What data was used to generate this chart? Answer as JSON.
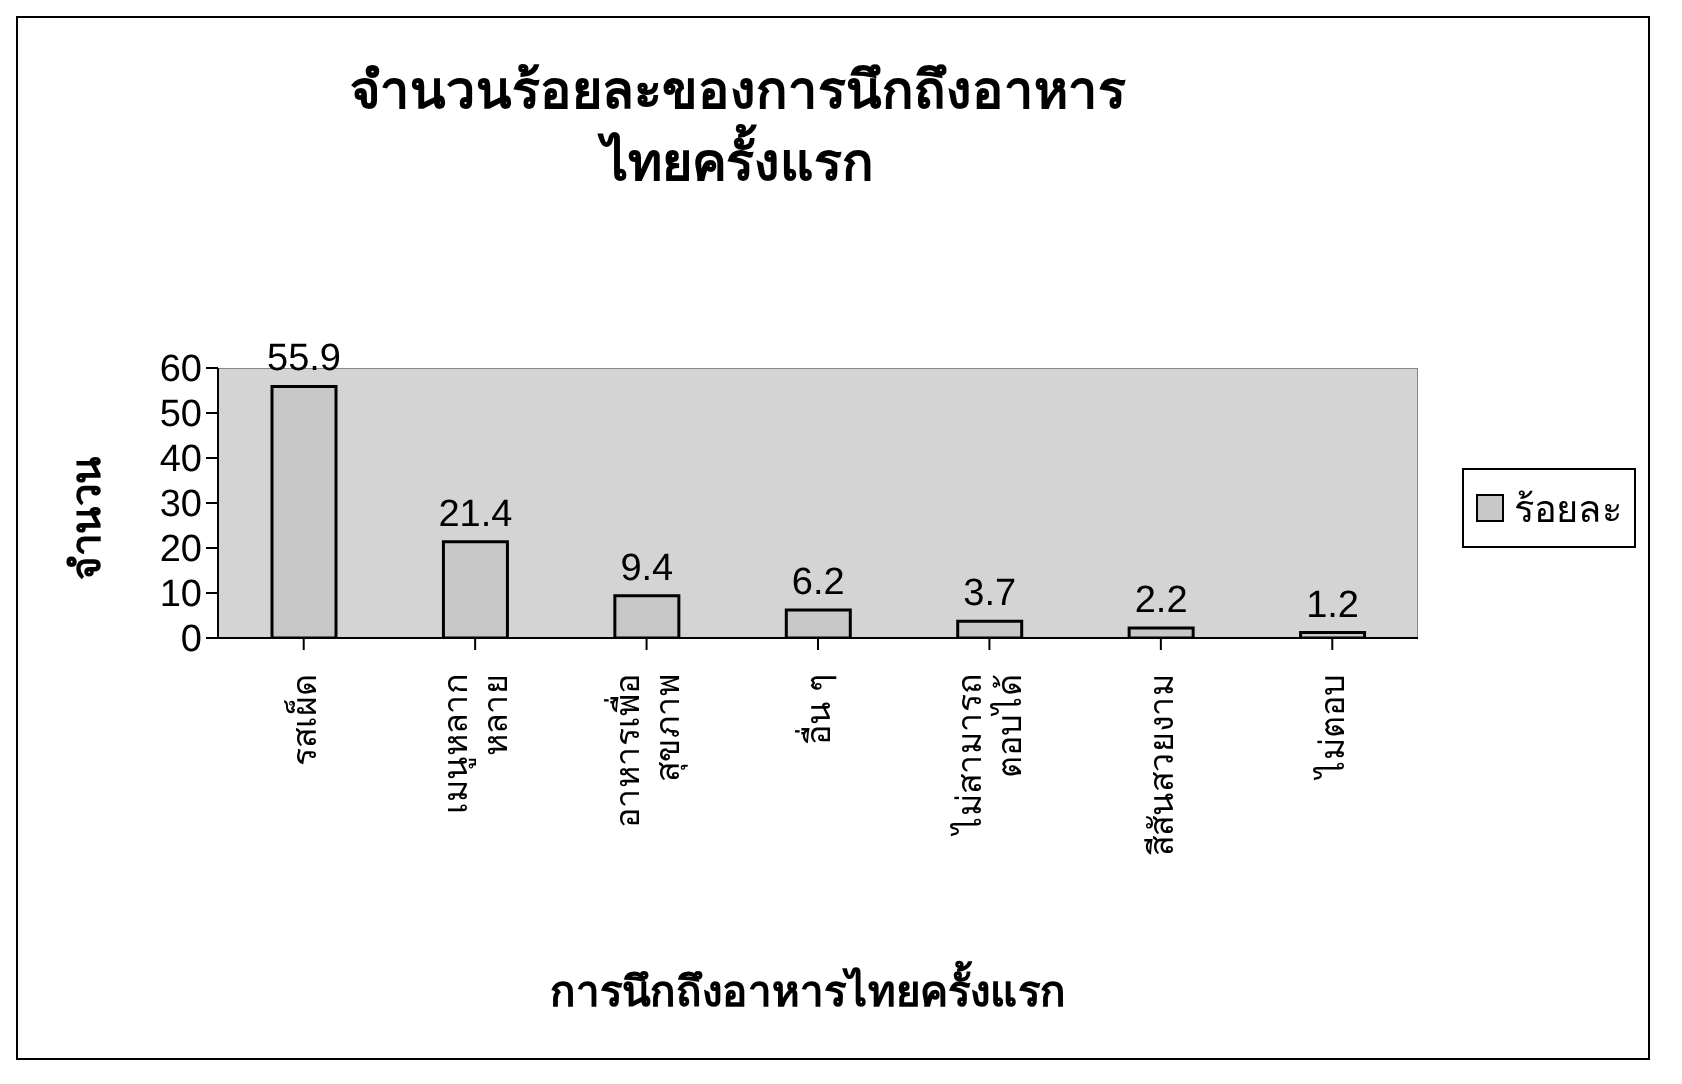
{
  "chart_data": {
    "type": "bar",
    "title": "จำนวนร้อยละของการนึกถึงอาหารไทยครั้งแรก",
    "xlabel": "การนึกถึงอาหารไทยครั้งแรก",
    "ylabel": "จำนวน",
    "categories": [
      "รสเผ็ด",
      "เมนูหลากหลาย",
      "อาหารเพื่อสุขภาพ",
      "อื่น ๆ",
      "ไม่สามารถตอบได้",
      "สีสันสวยงาม",
      "ไม่ตอบ"
    ],
    "series": [
      {
        "name": "ร้อยละ",
        "color": "#c8c8c8",
        "values": [
          55.9,
          21.4,
          9.4,
          6.2,
          3.7,
          2.2,
          1.2
        ]
      }
    ],
    "ylim": [
      0,
      60
    ],
    "yticks": [
      0,
      10,
      20,
      30,
      40,
      50,
      60
    ],
    "data_labels": true,
    "legend": "right",
    "grid": false
  }
}
